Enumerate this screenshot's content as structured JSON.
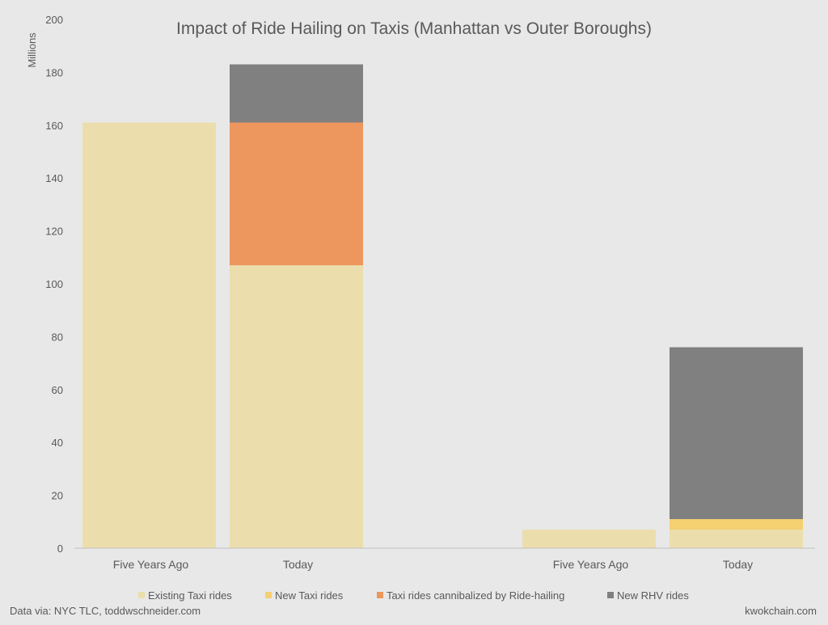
{
  "chart_data": {
    "type": "bar",
    "stacked": true,
    "title": "Impact of Ride Hailing on Taxis (Manhattan vs Outer Boroughs)",
    "ylabel": "Millions",
    "ylim": [
      0,
      200
    ],
    "yticks": [
      0,
      20,
      40,
      60,
      80,
      100,
      120,
      140,
      160,
      180,
      200
    ],
    "categories": [
      "Five Years Ago",
      "Today",
      "Five Years Ago",
      "Today"
    ],
    "groups": [
      "Manhattan",
      "Manhattan",
      "Outer Boroughs",
      "Outer Boroughs"
    ],
    "series": [
      {
        "name": "Existing Taxi rides",
        "color": "#ecdeac",
        "values": [
          161,
          107,
          7,
          7
        ]
      },
      {
        "name": "New Taxi rides",
        "color": "#f5d071",
        "values": [
          0,
          0,
          0,
          4
        ]
      },
      {
        "name": "Taxi rides cannibalized by Ride-hailing",
        "color": "#ed965d",
        "values": [
          0,
          54,
          0,
          0
        ]
      },
      {
        "name": "New RHV rides",
        "color": "#808080",
        "values": [
          0,
          22,
          0,
          65
        ]
      }
    ],
    "grid": false,
    "legend_position": "bottom"
  },
  "footer": {
    "source": "Data via: NYC TLC, toddwschneider.com",
    "credit": "kwokchain.com"
  }
}
